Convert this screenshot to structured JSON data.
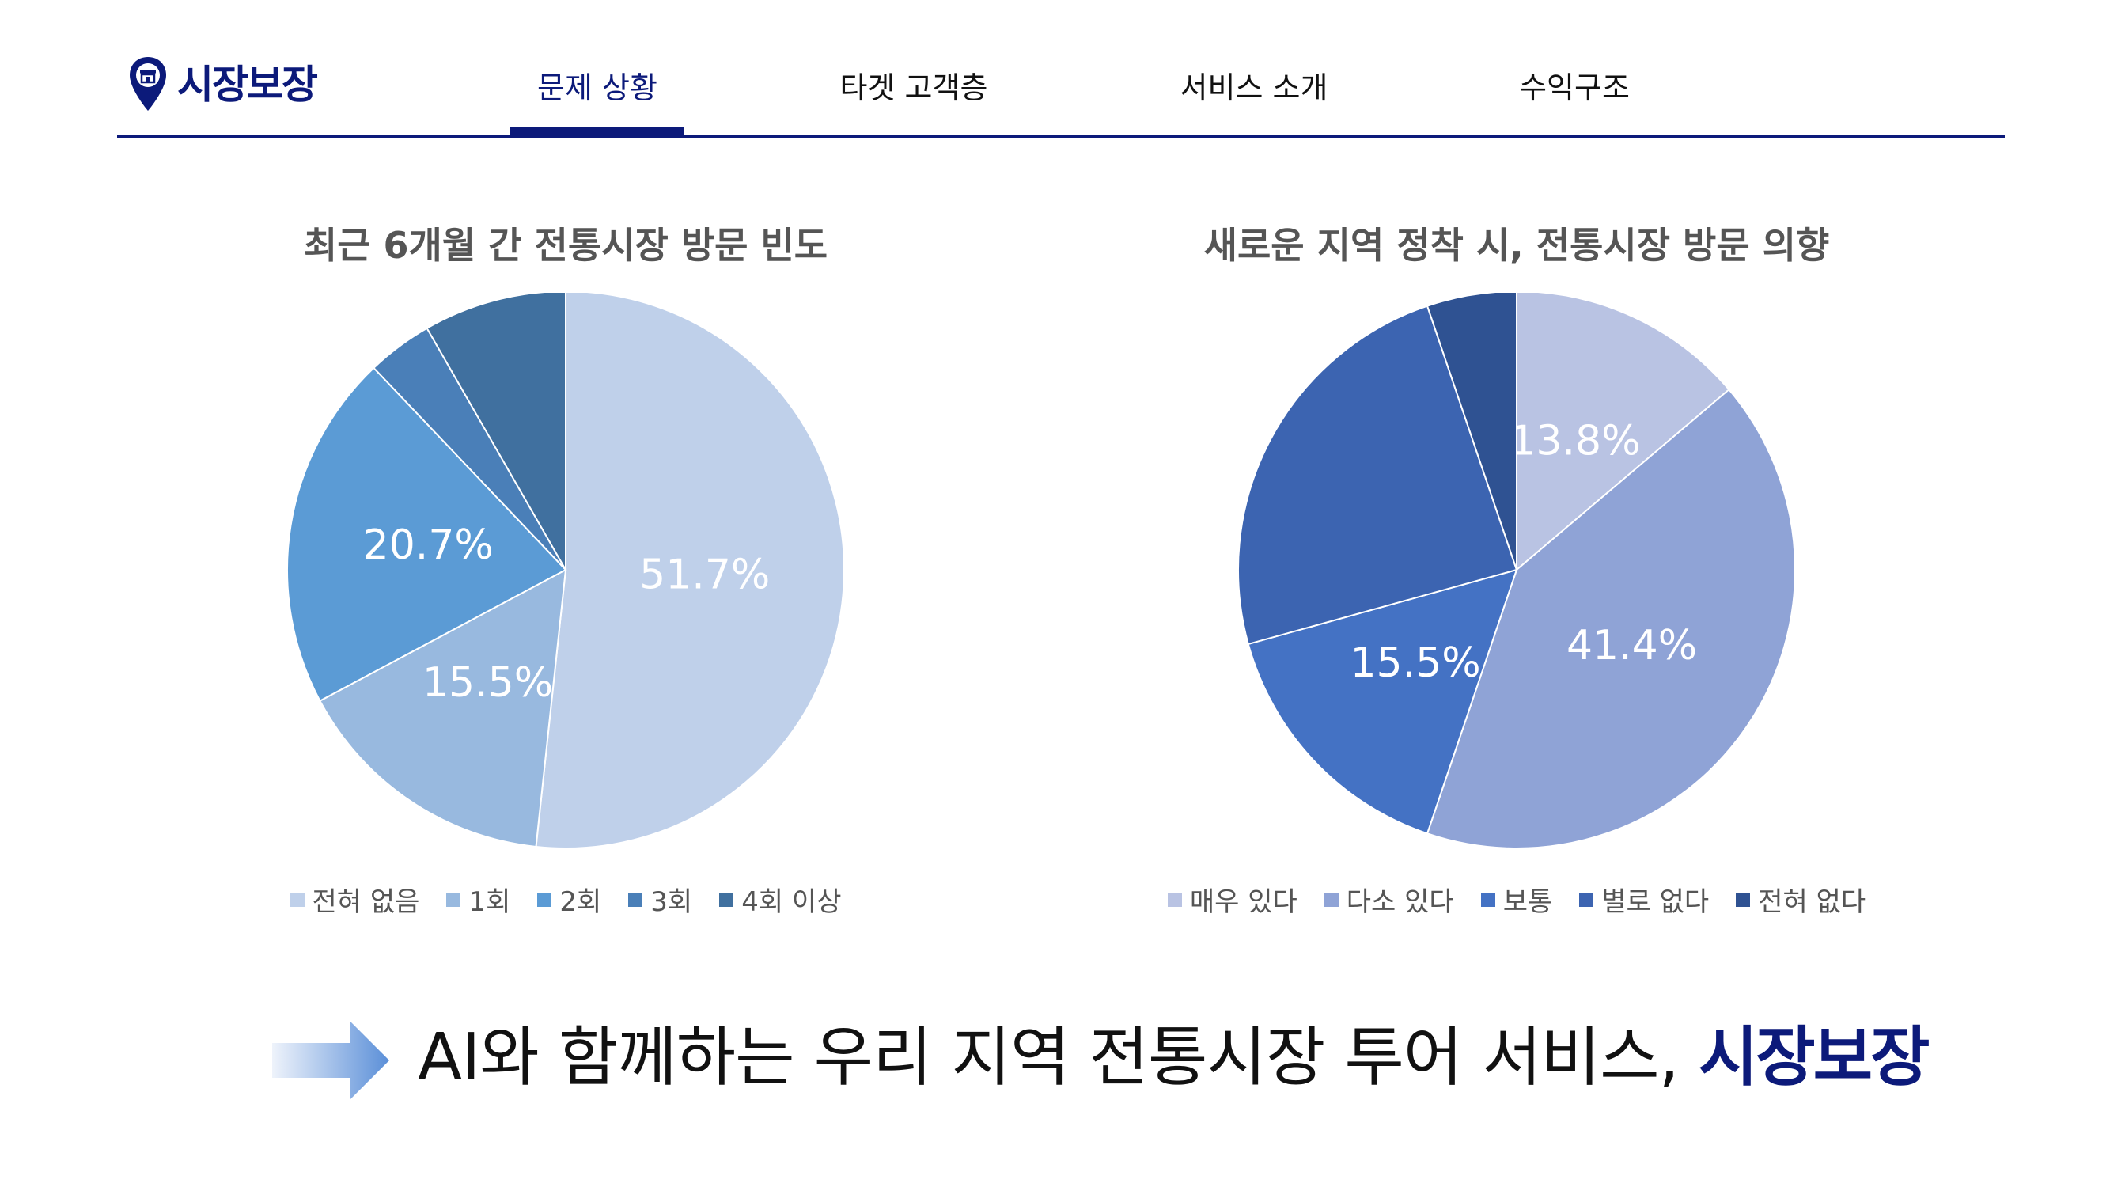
{
  "header": {
    "brand": "시장보장",
    "nav": [
      {
        "label": "문제 상황",
        "active": true
      },
      {
        "label": "타겟 고객층",
        "active": false
      },
      {
        "label": "서비스 소개",
        "active": false
      },
      {
        "label": "수익구조",
        "active": false
      }
    ],
    "accent": "#0c1a7a"
  },
  "chart_data": [
    {
      "type": "pie",
      "title": "최근 6개월 간 전통시장 방문 빈도",
      "legend_position": "bottom",
      "categories": [
        "전혀 없음",
        "1회",
        "2회",
        "3회",
        "4회 이상"
      ],
      "values": [
        51.7,
        15.5,
        20.7,
        3.8,
        8.3
      ],
      "data_labels": [
        "51.7%",
        "15.5%",
        "20.7%",
        "",
        ""
      ],
      "colors": [
        "#bfd0ea",
        "#98b9df",
        "#5b9bd5",
        "#4a7fb8",
        "#40709f"
      ]
    },
    {
      "type": "pie",
      "title": "새로운 지역 정착 시, 전통시장 방문 의향",
      "legend_position": "bottom",
      "categories": [
        "매우 있다",
        "다소 있다",
        "보통",
        "별로 없다",
        "전혀 없다"
      ],
      "values": [
        13.8,
        41.4,
        15.5,
        24.1,
        5.2
      ],
      "data_labels": [
        "13.8%",
        "41.4%",
        "15.5%",
        "",
        ""
      ],
      "colors": [
        "#b9c3e3",
        "#8fa3d6",
        "#4472c4",
        "#3c64b1",
        "#2f5292"
      ]
    }
  ],
  "tagline": {
    "text": "AI와 함께하는 우리 지역 전통시장 투어 서비스, ",
    "brand": "시장보장"
  }
}
